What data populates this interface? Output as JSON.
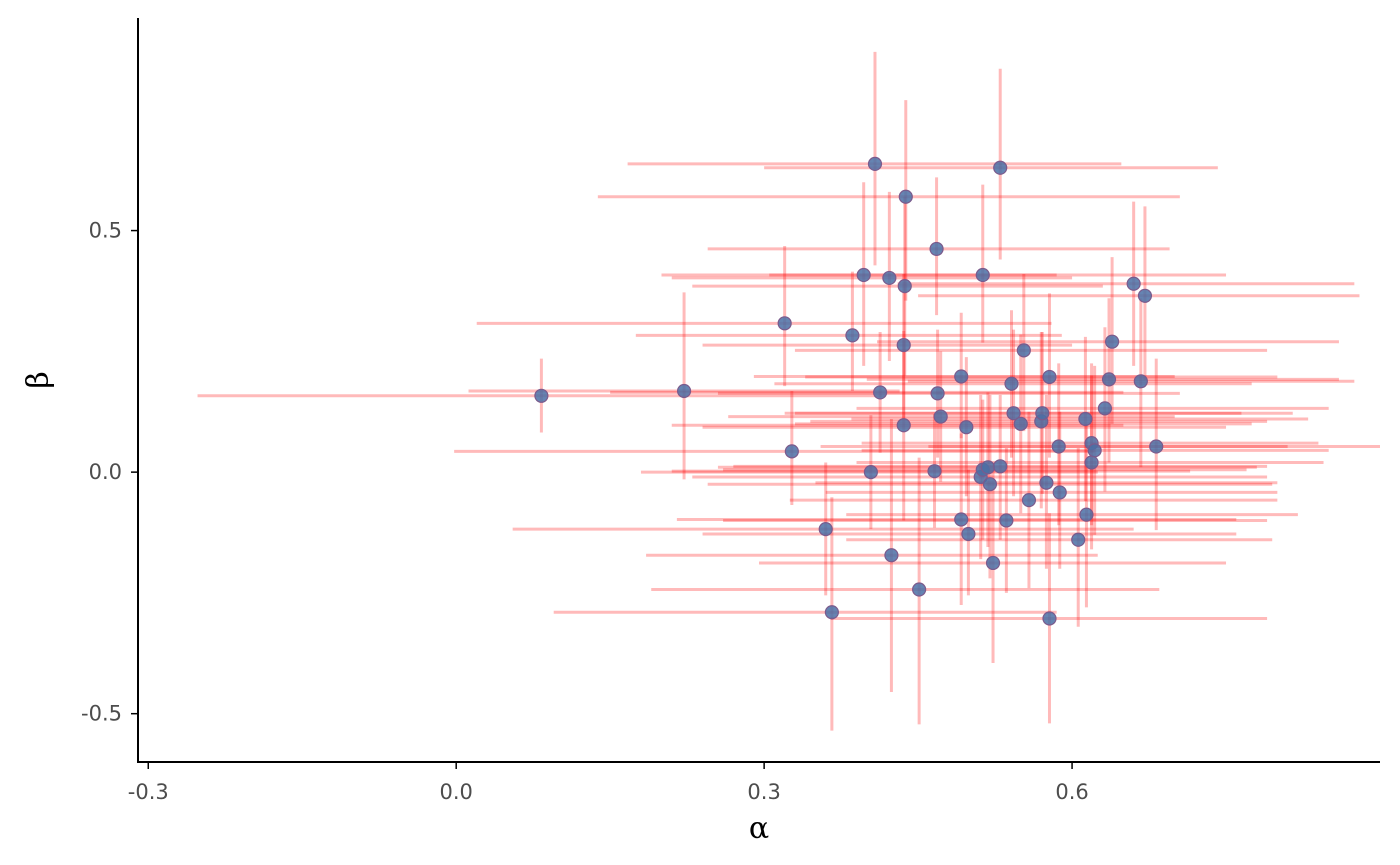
{
  "colors": {
    "errorbar": "#ff0000",
    "point_fill": "#4a6fa5",
    "point_stroke": "#7b5a8c",
    "axis": "#000000",
    "tick_label": "#4d4d4d"
  },
  "chart_data": {
    "type": "scatter",
    "xlabel": "α",
    "ylabel": "β",
    "xlim": [
      -0.31,
      0.9
    ],
    "ylim": [
      -0.6,
      0.94
    ],
    "xticks": [
      -0.3,
      0.0,
      0.3,
      0.6
    ],
    "xtick_labels": [
      "-0.3",
      "0.0",
      "0.3",
      "0.6"
    ],
    "yticks": [
      -0.5,
      0.0,
      0.5
    ],
    "ytick_labels": [
      "-0.5",
      "0.0",
      "0.5"
    ],
    "grid": false,
    "error_bars": true,
    "points": [
      {
        "x": 0.083,
        "y": 0.158,
        "xlo": -0.252,
        "xhi": 0.418,
        "ylo": 0.082,
        "yhi": 0.235
      },
      {
        "x": 0.222,
        "y": 0.168,
        "xlo": 0.012,
        "xhi": 0.432,
        "ylo": -0.015,
        "yhi": 0.372
      },
      {
        "x": 0.32,
        "y": 0.308,
        "xlo": 0.02,
        "xhi": 0.58,
        "ylo": 0.178,
        "yhi": 0.468
      },
      {
        "x": 0.327,
        "y": 0.043,
        "xlo": -0.002,
        "xhi": 0.622,
        "ylo": -0.068,
        "yhi": 0.168
      },
      {
        "x": 0.36,
        "y": -0.118,
        "xlo": 0.055,
        "xhi": 0.66,
        "ylo": -0.255,
        "yhi": 0.02
      },
      {
        "x": 0.366,
        "y": -0.29,
        "xlo": 0.095,
        "xhi": 0.585,
        "ylo": -0.535,
        "yhi": -0.052
      },
      {
        "x": 0.386,
        "y": 0.283,
        "xlo": 0.175,
        "xhi": 0.59,
        "ylo": 0.168,
        "yhi": 0.415
      },
      {
        "x": 0.397,
        "y": 0.408,
        "xlo": 0.2,
        "xhi": 0.585,
        "ylo": 0.22,
        "yhi": 0.6
      },
      {
        "x": 0.404,
        "y": 0.0,
        "xlo": 0.18,
        "xhi": 0.625,
        "ylo": -0.118,
        "yhi": 0.118
      },
      {
        "x": 0.408,
        "y": 0.638,
        "xlo": 0.167,
        "xhi": 0.648,
        "ylo": 0.428,
        "yhi": 0.87
      },
      {
        "x": 0.413,
        "y": 0.165,
        "xlo": 0.15,
        "xhi": 0.65,
        "ylo": 0.04,
        "yhi": 0.29
      },
      {
        "x": 0.422,
        "y": 0.402,
        "xlo": 0.21,
        "xhi": 0.6,
        "ylo": 0.23,
        "yhi": 0.58
      },
      {
        "x": 0.424,
        "y": -0.172,
        "xlo": 0.185,
        "xhi": 0.625,
        "ylo": -0.455,
        "yhi": 0.11
      },
      {
        "x": 0.436,
        "y": 0.263,
        "xlo": 0.24,
        "xhi": 0.6,
        "ylo": 0.11,
        "yhi": 0.41
      },
      {
        "x": 0.436,
        "y": 0.097,
        "xlo": 0.21,
        "xhi": 0.65,
        "ylo": -0.1,
        "yhi": 0.292
      },
      {
        "x": 0.437,
        "y": 0.385,
        "xlo": 0.23,
        "xhi": 0.63,
        "ylo": 0.2,
        "yhi": 0.57
      },
      {
        "x": 0.438,
        "y": 0.57,
        "xlo": 0.138,
        "xhi": 0.705,
        "ylo": 0.355,
        "yhi": 0.77
      },
      {
        "x": 0.451,
        "y": -0.243,
        "xlo": 0.19,
        "xhi": 0.685,
        "ylo": -0.522,
        "yhi": 0.03
      },
      {
        "x": 0.466,
        "y": 0.002,
        "xlo": 0.21,
        "xhi": 0.715,
        "ylo": -0.115,
        "yhi": 0.12
      },
      {
        "x": 0.468,
        "y": 0.462,
        "xlo": 0.245,
        "xhi": 0.695,
        "ylo": 0.325,
        "yhi": 0.61
      },
      {
        "x": 0.469,
        "y": 0.163,
        "xlo": 0.255,
        "xhi": 0.705,
        "ylo": 0.03,
        "yhi": 0.295
      },
      {
        "x": 0.472,
        "y": 0.115,
        "xlo": 0.265,
        "xhi": 0.7,
        "ylo": -0.02,
        "yhi": 0.25
      },
      {
        "x": 0.492,
        "y": 0.198,
        "xlo": 0.29,
        "xhi": 0.7,
        "ylo": 0.07,
        "yhi": 0.33
      },
      {
        "x": 0.492,
        "y": -0.098,
        "xlo": 0.215,
        "xhi": 0.76,
        "ylo": -0.275,
        "yhi": 0.08
      },
      {
        "x": 0.497,
        "y": 0.093,
        "xlo": 0.24,
        "xhi": 0.75,
        "ylo": -0.05,
        "yhi": 0.238
      },
      {
        "x": 0.499,
        "y": -0.128,
        "xlo": 0.24,
        "xhi": 0.76,
        "ylo": -0.255,
        "yhi": 0.005
      },
      {
        "x": 0.511,
        "y": -0.01,
        "xlo": 0.23,
        "xhi": 0.79,
        "ylo": -0.18,
        "yhi": 0.16
      },
      {
        "x": 0.513,
        "y": 0.005,
        "xlo": 0.26,
        "xhi": 0.77,
        "ylo": -0.14,
        "yhi": 0.15
      },
      {
        "x": 0.513,
        "y": 0.408,
        "xlo": 0.305,
        "xhi": 0.75,
        "ylo": 0.268,
        "yhi": 0.595
      },
      {
        "x": 0.518,
        "y": 0.01,
        "xlo": 0.255,
        "xhi": 0.78,
        "ylo": -0.155,
        "yhi": 0.165
      },
      {
        "x": 0.52,
        "y": -0.025,
        "xlo": 0.245,
        "xhi": 0.795,
        "ylo": -0.22,
        "yhi": 0.16
      },
      {
        "x": 0.523,
        "y": -0.188,
        "xlo": 0.295,
        "xhi": 0.75,
        "ylo": -0.395,
        "yhi": 0.02
      },
      {
        "x": 0.53,
        "y": 0.63,
        "xlo": 0.3,
        "xhi": 0.742,
        "ylo": 0.44,
        "yhi": 0.835
      },
      {
        "x": 0.53,
        "y": 0.012,
        "xlo": 0.27,
        "xhi": 0.79,
        "ylo": -0.14,
        "yhi": 0.16
      },
      {
        "x": 0.536,
        "y": -0.1,
        "xlo": 0.26,
        "xhi": 0.79,
        "ylo": -0.25,
        "yhi": 0.05
      },
      {
        "x": 0.541,
        "y": 0.183,
        "xlo": 0.31,
        "xhi": 0.775,
        "ylo": 0.03,
        "yhi": 0.335
      },
      {
        "x": 0.543,
        "y": 0.122,
        "xlo": 0.32,
        "xhi": 0.765,
        "ylo": -0.05,
        "yhi": 0.295
      },
      {
        "x": 0.55,
        "y": 0.1,
        "xlo": 0.33,
        "xhi": 0.775,
        "ylo": -0.085,
        "yhi": 0.285
      },
      {
        "x": 0.553,
        "y": 0.252,
        "xlo": 0.33,
        "xhi": 0.79,
        "ylo": 0.085,
        "yhi": 0.41
      },
      {
        "x": 0.558,
        "y": -0.058,
        "xlo": 0.325,
        "xhi": 0.8,
        "ylo": -0.24,
        "yhi": 0.125
      },
      {
        "x": 0.57,
        "y": 0.105,
        "xlo": 0.345,
        "xhi": 0.79,
        "ylo": -0.075,
        "yhi": 0.29
      },
      {
        "x": 0.571,
        "y": 0.122,
        "xlo": 0.33,
        "xhi": 0.815,
        "ylo": -0.045,
        "yhi": 0.29
      },
      {
        "x": 0.575,
        "y": -0.022,
        "xlo": 0.35,
        "xhi": 0.8,
        "ylo": -0.2,
        "yhi": 0.16
      },
      {
        "x": 0.578,
        "y": 0.197,
        "xlo": 0.34,
        "xhi": 0.8,
        "ylo": 0.03,
        "yhi": 0.37
      },
      {
        "x": 0.578,
        "y": -0.303,
        "xlo": 0.365,
        "xhi": 0.79,
        "ylo": -0.52,
        "yhi": -0.085
      },
      {
        "x": 0.587,
        "y": 0.053,
        "xlo": 0.355,
        "xhi": 0.81,
        "ylo": -0.11,
        "yhi": 0.225
      },
      {
        "x": 0.588,
        "y": -0.042,
        "xlo": 0.36,
        "xhi": 0.8,
        "ylo": -0.2,
        "yhi": 0.125
      },
      {
        "x": 0.606,
        "y": -0.14,
        "xlo": 0.38,
        "xhi": 0.795,
        "ylo": -0.32,
        "yhi": 0.05
      },
      {
        "x": 0.613,
        "y": 0.11,
        "xlo": 0.385,
        "xhi": 0.83,
        "ylo": -0.06,
        "yhi": 0.28
      },
      {
        "x": 0.614,
        "y": -0.088,
        "xlo": 0.38,
        "xhi": 0.82,
        "ylo": -0.28,
        "yhi": 0.1
      },
      {
        "x": 0.619,
        "y": 0.06,
        "xlo": 0.395,
        "xhi": 0.84,
        "ylo": -0.11,
        "yhi": 0.225
      },
      {
        "x": 0.619,
        "y": 0.02,
        "xlo": 0.39,
        "xhi": 0.845,
        "ylo": -0.16,
        "yhi": 0.2
      },
      {
        "x": 0.622,
        "y": 0.045,
        "xlo": 0.395,
        "xhi": 0.85,
        "ylo": -0.13,
        "yhi": 0.22
      },
      {
        "x": 0.632,
        "y": 0.132,
        "xlo": 0.39,
        "xhi": 0.85,
        "ylo": -0.04,
        "yhi": 0.3
      },
      {
        "x": 0.636,
        "y": 0.192,
        "xlo": 0.4,
        "xhi": 0.86,
        "ylo": 0.02,
        "yhi": 0.36
      },
      {
        "x": 0.639,
        "y": 0.27,
        "xlo": 0.41,
        "xhi": 0.86,
        "ylo": 0.1,
        "yhi": 0.445
      },
      {
        "x": 0.66,
        "y": 0.39,
        "xlo": 0.43,
        "xhi": 0.875,
        "ylo": 0.22,
        "yhi": 0.56
      },
      {
        "x": 0.667,
        "y": 0.188,
        "xlo": 0.44,
        "xhi": 0.875,
        "ylo": 0.01,
        "yhi": 0.36
      },
      {
        "x": 0.671,
        "y": 0.365,
        "xlo": 0.45,
        "xhi": 0.88,
        "ylo": 0.19,
        "yhi": 0.55
      },
      {
        "x": 0.682,
        "y": 0.053,
        "xlo": 0.46,
        "xhi": 0.9,
        "ylo": -0.12,
        "yhi": 0.235
      }
    ]
  }
}
